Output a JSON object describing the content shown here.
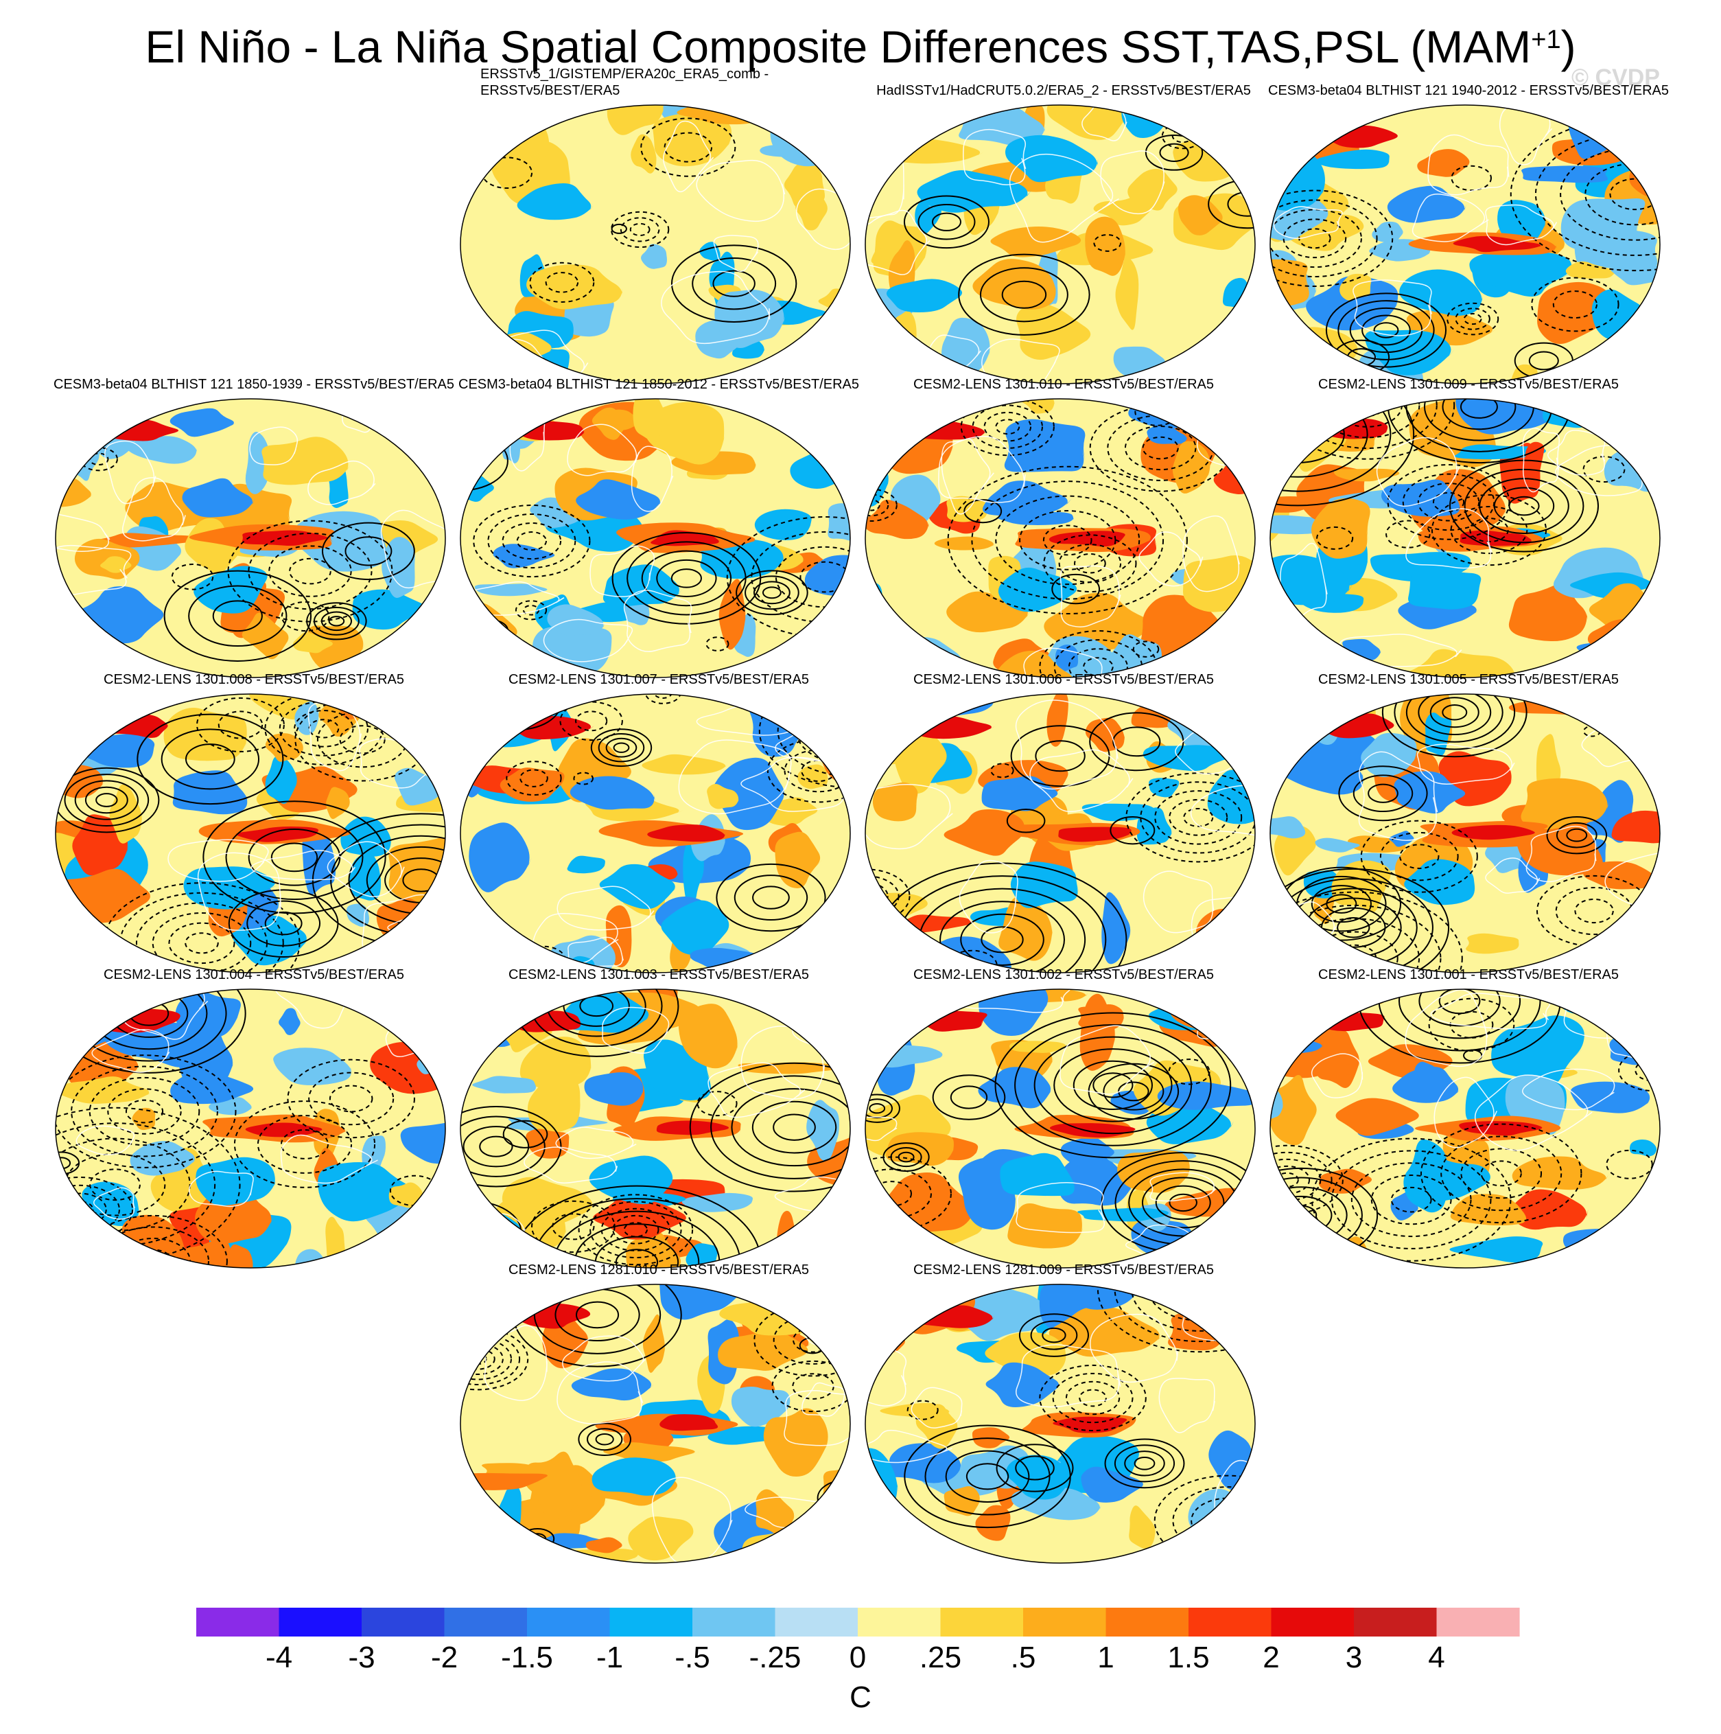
{
  "title": "El Niño - La Niña Spatial Composite Differences SST,TAS,PSL (MAM",
  "title_sup": "+1",
  "title_close": ")",
  "watermark": "© CVDP",
  "panels": [
    {
      "label": "ERSSTv5_1/GISTEMP/ERA20c_ERA5_comb - ERSSTv5/BEST/ERA5",
      "intensity": 0.25
    },
    {
      "label": "HadISSTv1/HadCRUT5.0.2/ERA5_2 - ERSSTv5/BEST/ERA5",
      "intensity": 0.35
    },
    {
      "label": "CESM3-beta04 BLTHIST 121 1940-2012 - ERSSTv5/BEST/ERA5",
      "intensity": 0.7
    },
    {
      "label": "CESM3-beta04 BLTHIST 121 1850-1939 - ERSSTv5/BEST/ERA5",
      "intensity": 0.65
    },
    {
      "label": "CESM3-beta04 BLTHIST 121 1850-2012 - ERSSTv5/BEST/ERA5",
      "intensity": 0.65
    },
    {
      "label": "CESM2-LENS 1301.010 - ERSSTv5/BEST/ERA5",
      "intensity": 0.95
    },
    {
      "label": "CESM2-LENS 1301.009 - ERSSTv5/BEST/ERA5",
      "intensity": 0.9
    },
    {
      "label": "CESM2-LENS 1301.008 - ERSSTv5/BEST/ERA5",
      "intensity": 0.9
    },
    {
      "label": "CESM2-LENS 1301.007 - ERSSTv5/BEST/ERA5",
      "intensity": 0.95
    },
    {
      "label": "CESM2-LENS 1301.006 - ERSSTv5/BEST/ERA5",
      "intensity": 0.9
    },
    {
      "label": "CESM2-LENS 1301.005 - ERSSTv5/BEST/ERA5",
      "intensity": 0.9
    },
    {
      "label": "CESM2-LENS 1301.004 - ERSSTv5/BEST/ERA5",
      "intensity": 0.85
    },
    {
      "label": "CESM2-LENS 1301.003 - ERSSTv5/BEST/ERA5",
      "intensity": 0.9
    },
    {
      "label": "CESM2-LENS 1301.002 - ERSSTv5/BEST/ERA5",
      "intensity": 0.85
    },
    {
      "label": "CESM2-LENS 1301.001 - ERSSTv5/BEST/ERA5",
      "intensity": 0.85
    },
    {
      "label": "CESM2-LENS 1281.010 - ERSSTv5/BEST/ERA5",
      "intensity": 0.85
    },
    {
      "label": "CESM2-LENS 1281.009 - ERSSTv5/BEST/ERA5",
      "intensity": 0.85
    }
  ],
  "chart_data": {
    "type": "heatmap",
    "title": "El Niño - La Niña Spatial Composite Differences SST,TAS,PSL (MAM+1)",
    "colorbar": {
      "units": "C",
      "tick_labels": [
        "-4",
        "-3",
        "-2",
        "-1.5",
        "-1",
        "-.5",
        "-.25",
        "0",
        ".25",
        ".5",
        "1",
        "1.5",
        "2",
        "3",
        "4"
      ],
      "levels": [
        -4,
        -3,
        -2,
        -1.5,
        -1,
        -0.5,
        -0.25,
        0,
        0.25,
        0.5,
        1,
        1.5,
        2,
        3,
        4
      ],
      "colors": [
        "#8a2be8",
        "#1a0fff",
        "#2b45de",
        "#3070e6",
        "#2a90f5",
        "#08b4f5",
        "#6fc6f2",
        "#b8dff4",
        "#fdf59a",
        "#fcd53a",
        "#fdad1c",
        "#fd7a10",
        "#fb3a0c",
        "#e60a0a",
        "#c81e1e",
        "#f9b0b3"
      ]
    }
  }
}
